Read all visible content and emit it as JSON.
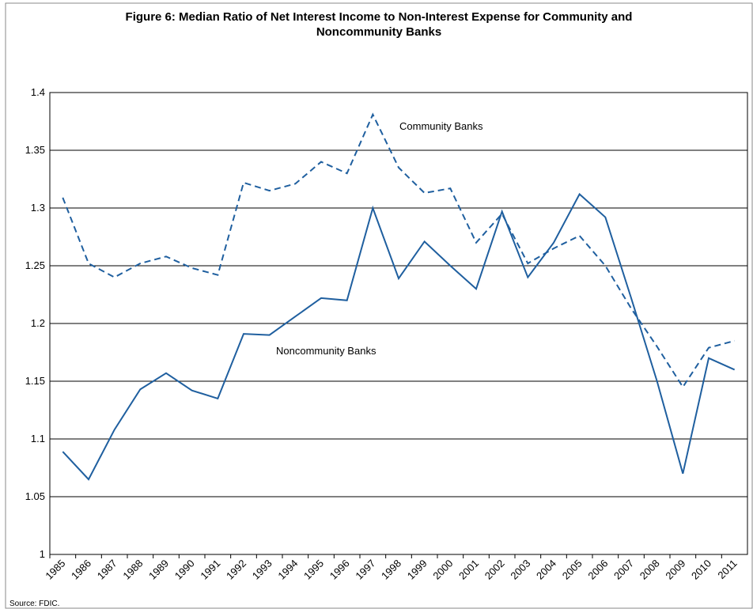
{
  "chart_data": {
    "type": "line",
    "title": [
      "Figure 6: Median Ratio of Net Interest Income to Non-Interest Expense for Community and",
      "Noncommunity Banks"
    ],
    "categories": [
      "1985",
      "1986",
      "1987",
      "1988",
      "1989",
      "1990",
      "1991",
      "1992",
      "1993",
      "1994",
      "1995",
      "1996",
      "1997",
      "1998",
      "1999",
      "2000",
      "2001",
      "2002",
      "2003",
      "2004",
      "2005",
      "2006",
      "2007",
      "2008",
      "2009",
      "2010",
      "2011"
    ],
    "series": [
      {
        "name": "Community Banks",
        "color": "#1f5f9f",
        "dashed": true,
        "values": [
          1.309,
          1.252,
          1.24,
          1.252,
          1.258,
          1.248,
          1.242,
          1.322,
          1.315,
          1.321,
          1.34,
          1.33,
          1.381,
          1.335,
          1.313,
          1.317,
          1.27,
          1.295,
          1.252,
          1.265,
          1.276,
          1.25,
          1.213,
          1.18,
          1.145,
          1.179,
          1.185
        ]
      },
      {
        "name": "Noncommunity Banks",
        "color": "#1f5f9f",
        "dashed": false,
        "values": [
          1.089,
          1.065,
          1.108,
          1.143,
          1.157,
          1.142,
          1.135,
          1.191,
          1.19,
          1.206,
          1.222,
          1.22,
          1.3,
          1.239,
          1.271,
          1.25,
          1.23,
          1.297,
          1.24,
          1.27,
          1.312,
          1.292,
          1.222,
          1.15,
          1.07,
          1.17,
          1.16
        ]
      }
    ],
    "ylim": [
      1,
      1.4
    ],
    "yticks": [
      1,
      1.05,
      1.1,
      1.15,
      1.2,
      1.25,
      1.3,
      1.35,
      1.4
    ],
    "grid": true,
    "source": "Source: FDIC."
  }
}
